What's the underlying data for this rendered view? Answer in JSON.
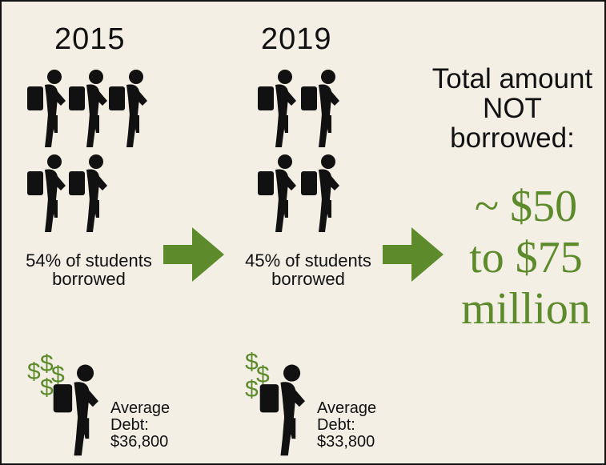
{
  "panel_2015": {
    "year": "2015",
    "caption_line1": "54% of students",
    "caption_line2": "borrowed",
    "debt_line1": "Average",
    "debt_line2": "Debt:",
    "debt_line3": "$36,800"
  },
  "panel_2019": {
    "year": "2019",
    "caption_line1": "45% of students",
    "caption_line2": "borrowed",
    "debt_line1": "Average",
    "debt_line2": "Debt:",
    "debt_line3": "$33,800"
  },
  "total": {
    "line1": "Total amount",
    "line2": "NOT",
    "line3": "borrowed:",
    "amount_line1": "~ $50",
    "amount_line2": "to $75",
    "amount_line3": "million"
  },
  "dollar_sign": "$",
  "colors": {
    "background": "#f3efe5",
    "accent_green": "#5d8b2c",
    "icon_black": "#111111"
  },
  "icons": {
    "student": "student-with-backpack-icon",
    "arrow": "right-arrow-icon",
    "money": "dollar-sign-icon"
  }
}
